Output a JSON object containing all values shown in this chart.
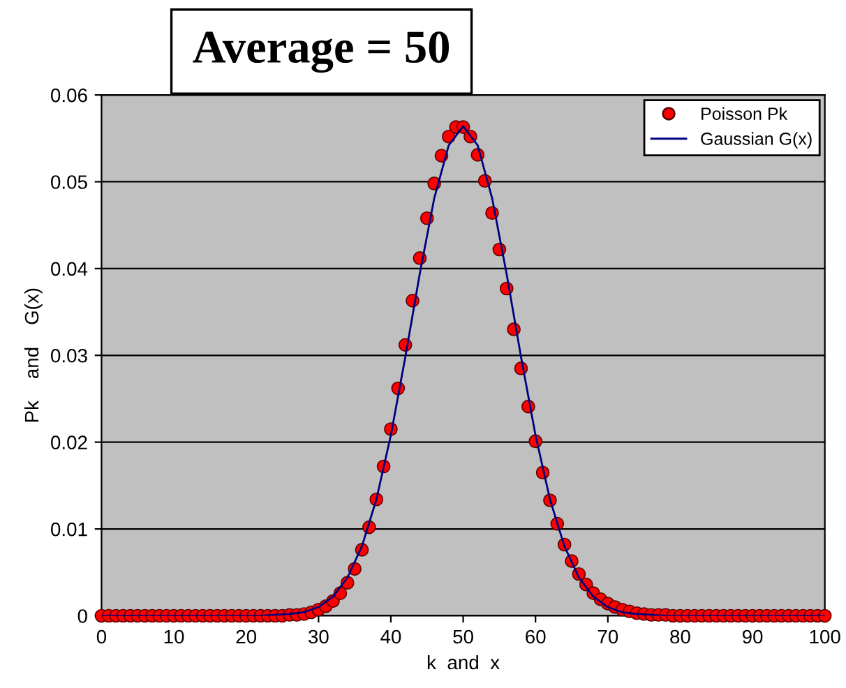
{
  "chart_data": {
    "type": "scatter",
    "title": "Average = 50",
    "xlabel": "k  and  x",
    "ylabel": "Pk    and    G(x)",
    "xlim": [
      0,
      100
    ],
    "ylim": [
      0,
      0.06
    ],
    "xticks": [
      0,
      10,
      20,
      30,
      40,
      50,
      60,
      70,
      80,
      90,
      100
    ],
    "yticks": [
      0,
      0.01,
      0.02,
      0.03,
      0.04,
      0.05,
      0.06
    ],
    "grid": "y",
    "legend": "top right",
    "series": [
      {
        "name": "Poisson Pk",
        "marker": "circle",
        "color": "#ff0000",
        "x": [
          0,
          1,
          2,
          3,
          4,
          5,
          6,
          7,
          8,
          9,
          10,
          11,
          12,
          13,
          14,
          15,
          16,
          17,
          18,
          19,
          20,
          21,
          22,
          23,
          24,
          25,
          26,
          27,
          28,
          29,
          30,
          31,
          32,
          33,
          34,
          35,
          36,
          37,
          38,
          39,
          40,
          41,
          42,
          43,
          44,
          45,
          46,
          47,
          48,
          49,
          50,
          51,
          52,
          53,
          54,
          55,
          56,
          57,
          58,
          59,
          60,
          61,
          62,
          63,
          64,
          65,
          66,
          67,
          68,
          69,
          70,
          71,
          72,
          73,
          74,
          75,
          76,
          77,
          78,
          79,
          80,
          81,
          82,
          83,
          84,
          85,
          86,
          87,
          88,
          89,
          90,
          91,
          92,
          93,
          94,
          95,
          96,
          97,
          98,
          99,
          100
        ],
        "values": [
          0,
          0,
          0,
          0,
          0,
          0,
          0,
          0,
          0,
          0,
          0,
          0,
          0,
          0,
          0,
          0,
          0,
          0,
          0,
          0,
          0,
          0,
          0,
          0,
          0,
          0.0,
          0.0001,
          0.0001,
          0.0002,
          0.0004,
          0.0007,
          0.0011,
          0.0017,
          0.0026,
          0.0038,
          0.0054,
          0.0076,
          0.0102,
          0.0134,
          0.0172,
          0.0215,
          0.0262,
          0.0312,
          0.0363,
          0.0412,
          0.0458,
          0.0498,
          0.053,
          0.0552,
          0.0563,
          0.0563,
          0.0552,
          0.0531,
          0.0501,
          0.0464,
          0.0422,
          0.0377,
          0.033,
          0.0285,
          0.0241,
          0.0201,
          0.0165,
          0.0133,
          0.0106,
          0.0082,
          0.0063,
          0.0048,
          0.0036,
          0.0026,
          0.0019,
          0.0014,
          0.001,
          0.0007,
          0.0005,
          0.0003,
          0.0002,
          0.0001,
          0.0001,
          0.0001,
          0,
          0,
          0,
          0,
          0,
          0,
          0,
          0,
          0,
          0,
          0,
          0,
          0,
          0,
          0,
          0,
          0,
          0,
          0,
          0,
          0,
          0
        ]
      },
      {
        "name": "Gaussian G(x)",
        "type": "line",
        "marker": "none",
        "line_style": "solid",
        "color": "#000080",
        "x": [
          0,
          20,
          22,
          24,
          26,
          28,
          30,
          32,
          34,
          36,
          38,
          40,
          42,
          44,
          46,
          48,
          50,
          52,
          54,
          56,
          58,
          60,
          62,
          64,
          66,
          68,
          70,
          72,
          74,
          76,
          78,
          80,
          100
        ],
        "values": [
          0,
          0,
          0,
          0.0001,
          0.0002,
          0.0004,
          0.001,
          0.0022,
          0.0044,
          0.008,
          0.0134,
          0.0208,
          0.0298,
          0.0394,
          0.0481,
          0.0542,
          0.0564,
          0.0542,
          0.0481,
          0.0394,
          0.0298,
          0.0208,
          0.0134,
          0.008,
          0.0044,
          0.0022,
          0.001,
          0.0004,
          0.0002,
          0.0001,
          0,
          0,
          0
        ]
      }
    ]
  }
}
